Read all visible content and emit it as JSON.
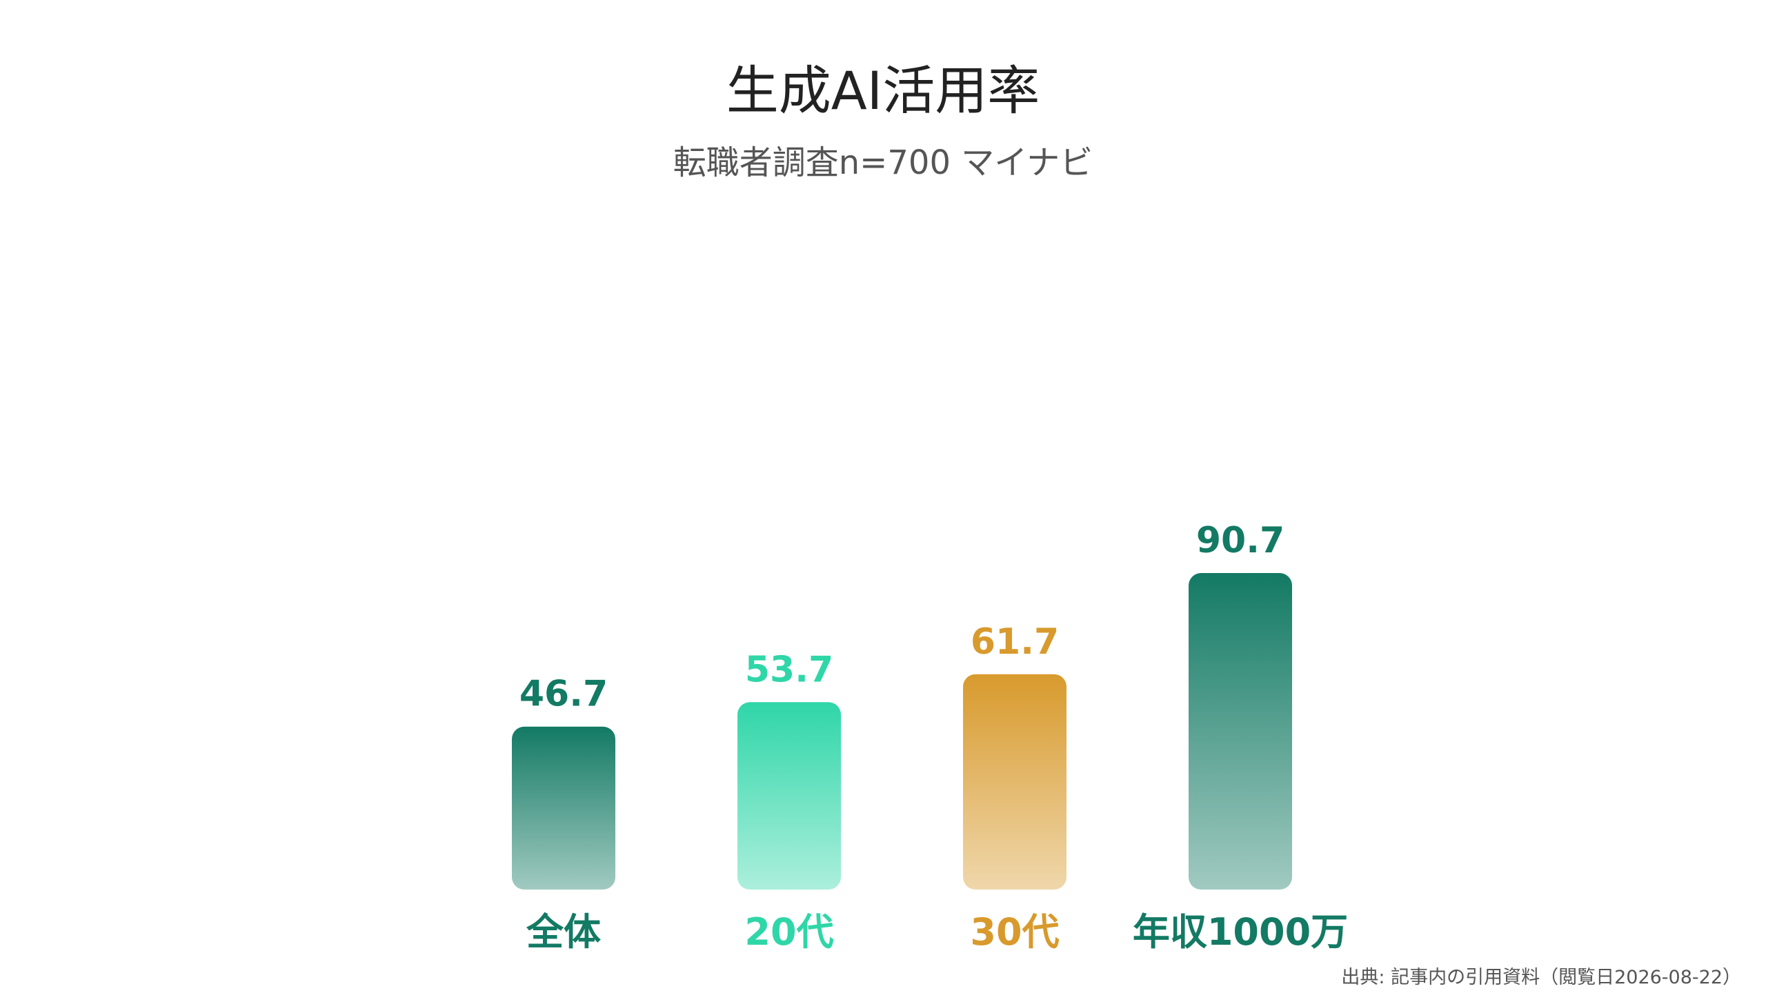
{
  "colors": {
    "dark_green": "#137a64",
    "light_green": "#2fd6a8",
    "gold": "#d89a2d"
  },
  "chart_data": {
    "type": "bar",
    "title": "生成AI活用率",
    "subtitle": "転職者調査n=700 マイナビ",
    "categories": [
      "全体",
      "20代",
      "30代",
      "年収1000万"
    ],
    "values": [
      46.7,
      53.7,
      61.7,
      90.7
    ],
    "data_labels": [
      "46.7",
      "53.7",
      "61.7",
      "90.7"
    ],
    "bar_colors": [
      "#137a64",
      "#2fd6a8",
      "#d89a2d",
      "#137a64"
    ],
    "xlabel": "",
    "ylabel": "",
    "ylim": [
      0,
      100
    ],
    "grid": false,
    "legend": "none"
  },
  "source": "出典: 記事内の引用資料（閲覧日2026-08-22）"
}
